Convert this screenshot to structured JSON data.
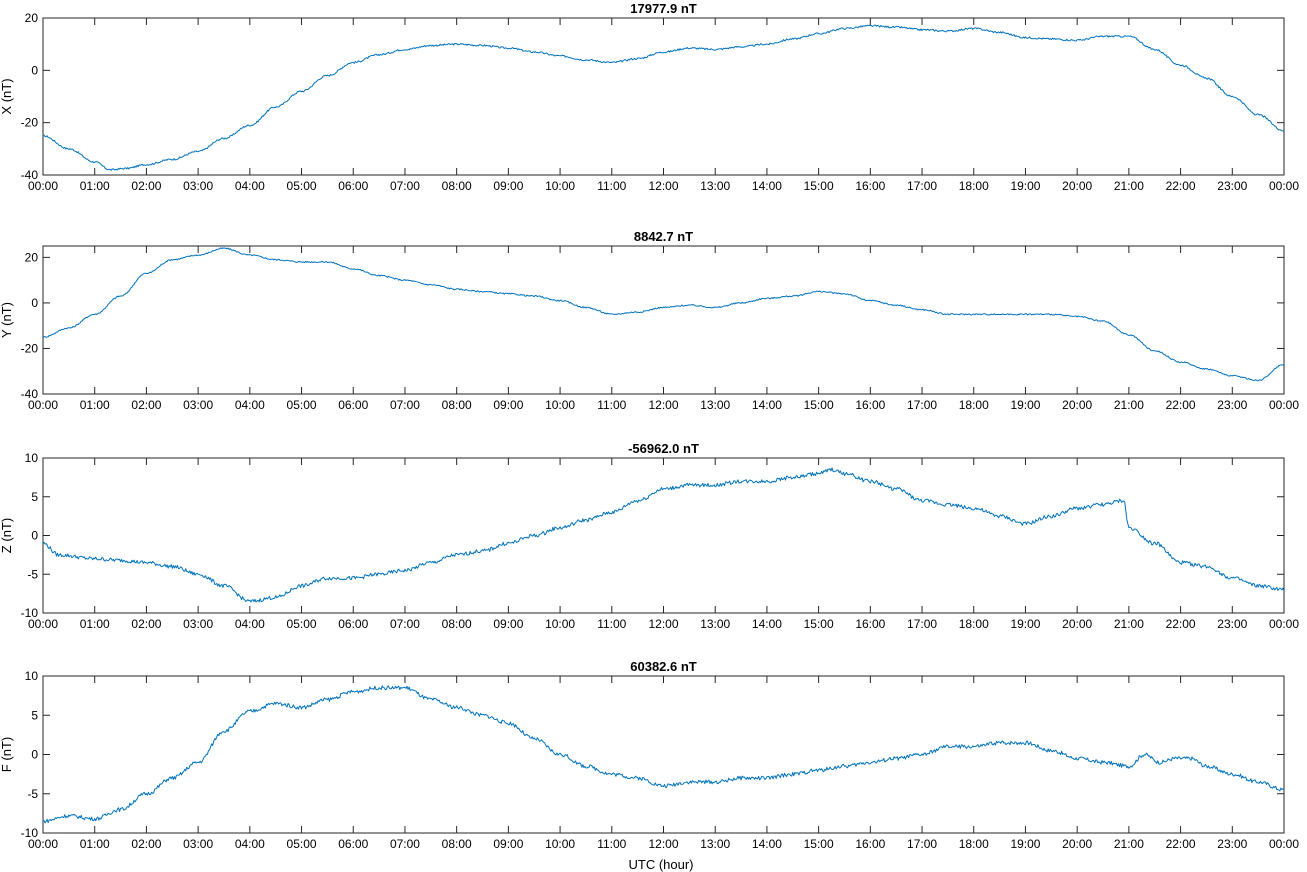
{
  "figure": {
    "xlabel": "UTC (hour)",
    "line_color": "#0072BD"
  },
  "chart_data": [
    {
      "type": "line",
      "title": "17977.9 nT",
      "ylabel": "X (nT)",
      "xlim": [
        0,
        24
      ],
      "ylim": [
        -40,
        20
      ],
      "yticks": [
        -40,
        -20,
        0,
        20
      ],
      "xticks": [
        "00:00",
        "01:00",
        "02:00",
        "03:00",
        "04:00",
        "05:00",
        "06:00",
        "07:00",
        "08:00",
        "09:00",
        "10:00",
        "11:00",
        "12:00",
        "13:00",
        "14:00",
        "15:00",
        "16:00",
        "17:00",
        "18:00",
        "19:00",
        "20:00",
        "21:00",
        "22:00",
        "23:00",
        "00:00"
      ],
      "grid": false,
      "noise": 0.35,
      "series": [
        {
          "x": [
            0,
            0.5,
            1,
            1.3,
            1.6,
            2,
            2.5,
            3,
            3.5,
            4,
            4.5,
            5,
            5.5,
            6,
            6.5,
            7,
            7.5,
            8,
            8.5,
            9,
            9.5,
            10,
            10.5,
            11,
            11.5,
            12,
            12.5,
            13,
            13.5,
            14,
            14.5,
            15,
            15.5,
            16,
            16.5,
            17,
            17.5,
            18,
            18.5,
            19,
            19.5,
            20,
            20.5,
            21,
            21.5,
            22,
            22.5,
            23,
            23.5,
            24
          ],
          "y": [
            -25,
            -30,
            -35,
            -38,
            -37.5,
            -36,
            -34,
            -31,
            -26,
            -21,
            -14,
            -8,
            -2,
            3,
            6,
            8,
            9.5,
            10,
            9.5,
            8.5,
            7,
            5.5,
            4,
            3,
            4.5,
            7,
            8.5,
            8,
            9,
            10,
            12,
            14,
            16,
            17,
            16.5,
            15.5,
            15,
            16,
            14.5,
            12.5,
            12,
            11.5,
            13,
            13,
            8,
            2,
            -3,
            -10,
            -17,
            -23
          ]
        }
      ]
    },
    {
      "type": "line",
      "title": "8842.7 nT",
      "ylabel": "Y (nT)",
      "xlim": [
        0,
        24
      ],
      "ylim": [
        -40,
        25
      ],
      "yticks": [
        -40,
        -20,
        0,
        20
      ],
      "xticks": [
        "00:00",
        "01:00",
        "02:00",
        "03:00",
        "04:00",
        "05:00",
        "06:00",
        "07:00",
        "08:00",
        "09:00",
        "10:00",
        "11:00",
        "12:00",
        "13:00",
        "14:00",
        "15:00",
        "16:00",
        "17:00",
        "18:00",
        "19:00",
        "20:00",
        "21:00",
        "22:00",
        "23:00",
        "00:00"
      ],
      "grid": false,
      "noise": 0.3,
      "series": [
        {
          "x": [
            0,
            0.5,
            1,
            1.5,
            2,
            2.5,
            3,
            3.5,
            4,
            4.5,
            5,
            5.5,
            6,
            6.5,
            7,
            7.5,
            8,
            8.5,
            9,
            9.5,
            10,
            10.5,
            11,
            11.5,
            12,
            12.5,
            13,
            13.5,
            14,
            14.5,
            15,
            15.5,
            16,
            16.5,
            17,
            17.5,
            18,
            18.5,
            19,
            19.5,
            20,
            20.5,
            21,
            21.5,
            22,
            22.5,
            23,
            23.5,
            24
          ],
          "y": [
            -15,
            -11,
            -5,
            3,
            13,
            19,
            21,
            24,
            21,
            19,
            18,
            18,
            15,
            12,
            10,
            8,
            6,
            5,
            4,
            3,
            1,
            -2,
            -5,
            -4,
            -2,
            -1,
            -2,
            0,
            2,
            3,
            5,
            4,
            1,
            -1,
            -3,
            -5,
            -5,
            -5,
            -5,
            -5,
            -6,
            -8,
            -14,
            -21,
            -26,
            -29,
            -32,
            -34,
            -27
          ]
        }
      ]
    },
    {
      "type": "line",
      "title": "-56962.0 nT",
      "ylabel": "Z (nT)",
      "xlim": [
        0,
        24
      ],
      "ylim": [
        -10,
        10
      ],
      "yticks": [
        -10,
        -5,
        0,
        5,
        10
      ],
      "xticks": [
        "00:00",
        "01:00",
        "02:00",
        "03:00",
        "04:00",
        "05:00",
        "06:00",
        "07:00",
        "08:00",
        "09:00",
        "10:00",
        "11:00",
        "12:00",
        "13:00",
        "14:00",
        "15:00",
        "16:00",
        "17:00",
        "18:00",
        "19:00",
        "20:00",
        "21:00",
        "22:00",
        "23:00",
        "00:00"
      ],
      "grid": false,
      "noise": 0.25,
      "series": [
        {
          "x": [
            0,
            0.3,
            1,
            1.5,
            2,
            2.5,
            3,
            3.5,
            4,
            4.5,
            5,
            5.5,
            6,
            6.5,
            7,
            7.5,
            8,
            8.5,
            9,
            9.5,
            10,
            10.5,
            11,
            11.5,
            12,
            12.5,
            13,
            13.5,
            14,
            14.5,
            15,
            15.25,
            15.5,
            16,
            16.5,
            17,
            17.5,
            18,
            18.5,
            19,
            19.5,
            20,
            20.5,
            20.9,
            21,
            21.5,
            22,
            22.5,
            23,
            23.5,
            24
          ],
          "y": [
            -1,
            -2.5,
            -3,
            -3.2,
            -3.5,
            -4,
            -5,
            -6.5,
            -8.5,
            -8,
            -6.5,
            -5.5,
            -5.5,
            -5,
            -4.5,
            -3.5,
            -2.5,
            -2,
            -1,
            0,
            1,
            2,
            3,
            4.5,
            6,
            6.5,
            6.5,
            7,
            7,
            7.5,
            8,
            8.5,
            8,
            7,
            6,
            4.5,
            4,
            3.5,
            2.5,
            1.5,
            2.5,
            3.5,
            4,
            4.5,
            1,
            -1,
            -3.5,
            -4,
            -5.5,
            -6.5,
            -7
          ]
        }
      ]
    },
    {
      "type": "line",
      "title": "60382.6 nT",
      "ylabel": "F (nT)",
      "xlim": [
        0,
        24
      ],
      "ylim": [
        -10,
        10
      ],
      "yticks": [
        -10,
        -5,
        0,
        5,
        10
      ],
      "xticks": [
        "00:00",
        "01:00",
        "02:00",
        "03:00",
        "04:00",
        "05:00",
        "06:00",
        "07:00",
        "08:00",
        "09:00",
        "10:00",
        "11:00",
        "12:00",
        "13:00",
        "14:00",
        "15:00",
        "16:00",
        "17:00",
        "18:00",
        "19:00",
        "20:00",
        "21:00",
        "22:00",
        "23:00",
        "00:00"
      ],
      "grid": false,
      "noise": 0.25,
      "series": [
        {
          "x": [
            0,
            0.5,
            1,
            1.5,
            2,
            2.5,
            3,
            3.5,
            4,
            4.5,
            5,
            5.5,
            6,
            6.5,
            7,
            7.5,
            8,
            8.5,
            9,
            9.5,
            10,
            10.5,
            11,
            11.5,
            12,
            12.5,
            13,
            13.5,
            14,
            14.5,
            15,
            15.5,
            16,
            16.5,
            17,
            17.5,
            18,
            18.5,
            19,
            19.5,
            20,
            20.5,
            21,
            21.3,
            21.6,
            21.9,
            22.2,
            22.5,
            23,
            23.5,
            24
          ],
          "y": [
            -8.5,
            -7.8,
            -8.2,
            -7,
            -5,
            -3,
            -1,
            3,
            5.5,
            6.5,
            6,
            7,
            8,
            8.5,
            8.5,
            7,
            6,
            5,
            4,
            2,
            0,
            -1.5,
            -2.5,
            -3,
            -4,
            -3.5,
            -3.5,
            -3,
            -3,
            -2.5,
            -2,
            -1.5,
            -1,
            -0.5,
            0,
            1,
            1,
            1.5,
            1.5,
            0.5,
            -0.5,
            -1,
            -1.5,
            0,
            -1,
            -0.5,
            -0.5,
            -1.5,
            -2.5,
            -3.5,
            -4.5
          ]
        }
      ]
    }
  ]
}
